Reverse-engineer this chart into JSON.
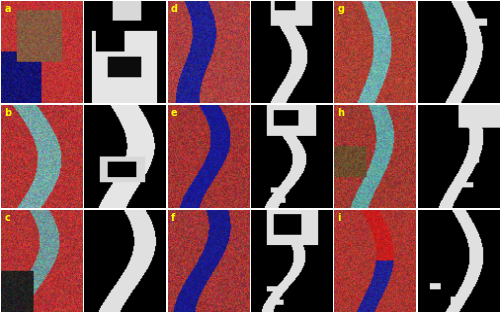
{
  "figure_width": 5.0,
  "figure_height": 3.13,
  "dpi": 100,
  "rows": 3,
  "cols": 6,
  "labels": [
    "a",
    "b",
    "c",
    "d",
    "e",
    "f",
    "g",
    "h",
    "i"
  ],
  "label_color": "yellow",
  "label_fontsize": 7,
  "background_color": "#ffffff"
}
